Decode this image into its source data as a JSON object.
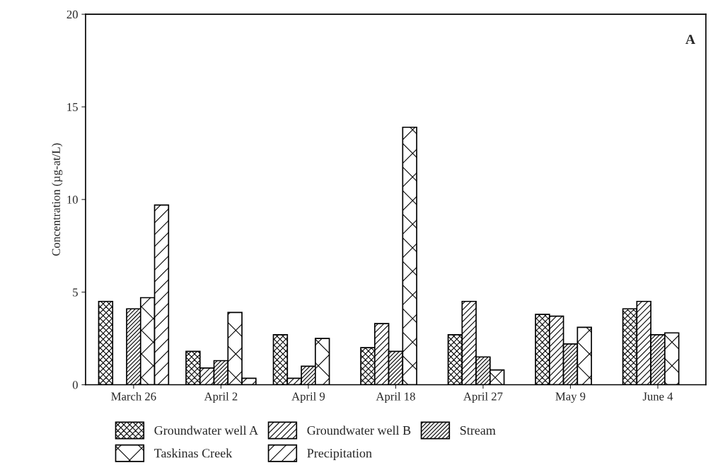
{
  "chart_data": {
    "type": "bar",
    "ylabel": "Concentration (µg-at/L)",
    "categories": [
      "March 26",
      "April 2",
      "April 9",
      "April 18",
      "April 27",
      "May 9",
      "June 4"
    ],
    "series": [
      {
        "name": "Groundwater well A",
        "values": [
          4.5,
          1.8,
          2.7,
          2.0,
          2.7,
          3.8,
          4.1
        ]
      },
      {
        "name": "Groundwater well B",
        "values": [
          null,
          0.9,
          0.35,
          3.3,
          4.5,
          3.7,
          4.5
        ]
      },
      {
        "name": "Stream",
        "values": [
          4.1,
          1.3,
          1.0,
          1.8,
          1.5,
          2.2,
          2.7
        ]
      },
      {
        "name": "Taskinas Creek",
        "values": [
          4.7,
          3.9,
          2.5,
          13.9,
          0.8,
          3.1,
          2.8
        ]
      },
      {
        "name": "Precipitation",
        "values": [
          9.7,
          0.35,
          null,
          null,
          null,
          null,
          null
        ]
      }
    ],
    "ylim": [
      0,
      20
    ],
    "yticks": [
      0,
      5,
      10,
      15,
      20
    ],
    "grid": false,
    "legend": "bottom",
    "annotations": [
      "A"
    ]
  }
}
